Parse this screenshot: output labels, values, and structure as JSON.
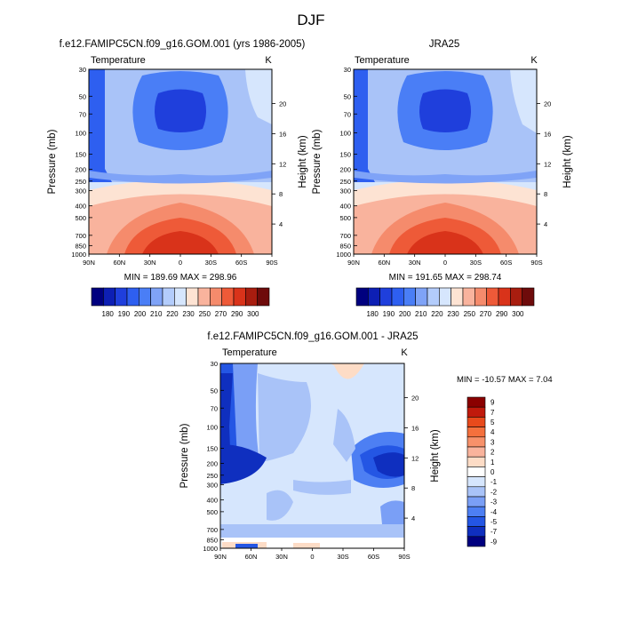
{
  "figure": {
    "title": "DJF"
  },
  "chart_data": [
    {
      "type": "heatmap",
      "title": "f.e12.FAMIPC5CN.f09_g16.GOM.001 (yrs 1986-2005)",
      "left_label": "Temperature",
      "right_label": "K",
      "ylabel": "Pressure (mb)",
      "ylabel_right": "Height (km)",
      "stats": "MIN = 189.69   MAX = 298.96",
      "x_ticks": [
        "90N",
        "60N",
        "30N",
        "0",
        "30S",
        "60S",
        "90S"
      ],
      "y_ticks": [
        "30",
        "50",
        "70",
        "100",
        "150",
        "200",
        "250",
        "300",
        "400",
        "500",
        "700",
        "850",
        "1000"
      ],
      "height_ticks": [
        "4",
        "8",
        "12",
        "16",
        "20"
      ],
      "colorbar": [
        "180",
        "190",
        "200",
        "210",
        "220",
        "230",
        "250",
        "270",
        "290",
        "300"
      ],
      "min": 189.69,
      "max": 298.96
    },
    {
      "type": "heatmap",
      "title": "JRA25",
      "left_label": "Temperature",
      "right_label": "K",
      "ylabel": "Pressure (mb)",
      "ylabel_right": "Height (km)",
      "stats": "MIN = 191.65   MAX = 298.74",
      "x_ticks": [
        "90N",
        "60N",
        "30N",
        "0",
        "30S",
        "60S",
        "90S"
      ],
      "y_ticks": [
        "30",
        "50",
        "70",
        "100",
        "150",
        "200",
        "250",
        "300",
        "400",
        "500",
        "700",
        "850",
        "1000"
      ],
      "height_ticks": [
        "4",
        "8",
        "12",
        "16",
        "20"
      ],
      "colorbar": [
        "180",
        "190",
        "200",
        "210",
        "220",
        "230",
        "250",
        "270",
        "290",
        "300"
      ],
      "min": 191.65,
      "max": 298.74
    },
    {
      "type": "heatmap",
      "title": "f.e12.FAMIPC5CN.f09_g16.GOM.001 - JRA25",
      "left_label": "Temperature",
      "right_label": "K",
      "ylabel": "Pressure (mb)",
      "ylabel_right": "Height (km)",
      "stats": "MIN = -10.57  MAX =   7.04",
      "x_ticks": [
        "90N",
        "60N",
        "30N",
        "0",
        "30S",
        "60S",
        "90S"
      ],
      "y_ticks": [
        "30",
        "50",
        "70",
        "100",
        "150",
        "200",
        "250",
        "300",
        "400",
        "500",
        "700",
        "850",
        "1000"
      ],
      "height_ticks": [
        "4",
        "8",
        "12",
        "16",
        "20"
      ],
      "colorbar": [
        "9",
        "7",
        "5",
        "4",
        "3",
        "2",
        "1",
        "0",
        "-1",
        "-2",
        "-3",
        "-4",
        "-5",
        "-7",
        "-9"
      ],
      "min": -10.57,
      "max": 7.04
    }
  ],
  "colors": {
    "abs_palette": [
      "#00007f",
      "#0d1fb4",
      "#1f3fdc",
      "#2e5ff0",
      "#4a7ef6",
      "#7fa3f7",
      "#b3ccfb",
      "#d6e6fd",
      "#fde3d3",
      "#f9b39d",
      "#f58b6c",
      "#ee5a38",
      "#d9331a",
      "#a81d0f",
      "#6e0b0b"
    ],
    "diff_palette": [
      "#8b0000",
      "#c01a0c",
      "#e84a1c",
      "#f4703d",
      "#f7916a",
      "#f9b39c",
      "#fddcc6",
      "#ffffff",
      "#d6e6fd",
      "#a9c3f8",
      "#7a9ff6",
      "#4d7ff3",
      "#2456e4",
      "#0f2fbf",
      "#00007f"
    ]
  }
}
